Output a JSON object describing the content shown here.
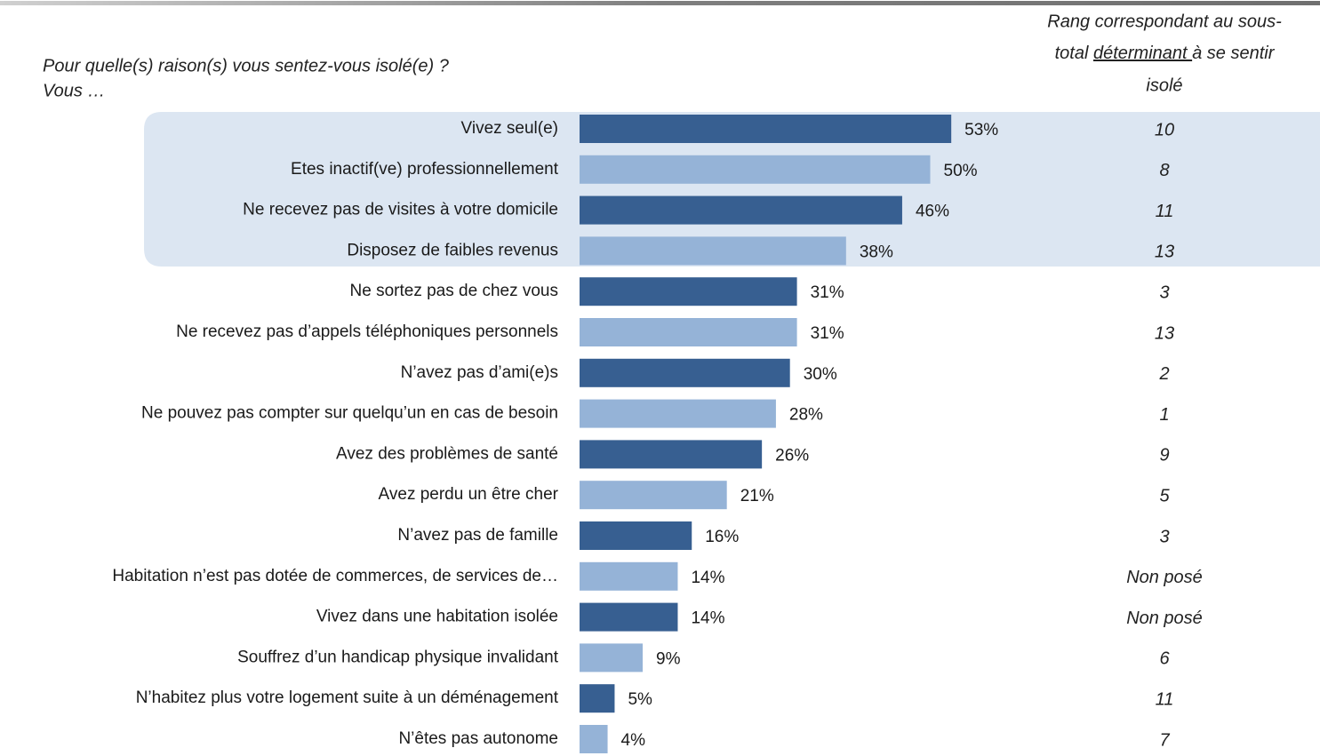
{
  "chart_data": {
    "type": "bar",
    "orientation": "horizontal",
    "title": "Pour quelle(s) raison(s) vous sentez-vous isolé(e) ?",
    "subtitle": "Vous …",
    "categories": [
      "Vivez seul(e)",
      "Etes inactif(ve) professionnellement",
      "Ne recevez pas de visites à votre domicile",
      "Disposez de faibles revenus",
      "Ne sortez pas de chez vous",
      "Ne recevez pas d’appels téléphoniques personnels",
      "N’avez pas d’ami(e)s",
      "Ne pouvez pas compter sur quelqu’un en cas de besoin",
      "Avez des problèmes de santé",
      "Avez perdu un être cher",
      "N’avez pas de famille",
      "Habitation n’est pas dotée de commerces, de services de…",
      "Vivez dans une habitation isolée",
      "Souffrez d’un handicap physique invalidant",
      "N’habitez plus votre logement suite à un déménagement",
      "N’êtes pas autonome"
    ],
    "values": [
      53,
      50,
      46,
      38,
      31,
      31,
      30,
      28,
      26,
      21,
      16,
      14,
      14,
      9,
      5,
      4
    ],
    "value_labels": [
      "53%",
      "50%",
      "46%",
      "38%",
      "31%",
      "31%",
      "30%",
      "28%",
      "26%",
      "21%",
      "16%",
      "14%",
      "14%",
      "9%",
      "5%",
      "4%"
    ],
    "colors": [
      "#375f91",
      "#95b3d7",
      "#375f91",
      "#95b3d7",
      "#375f91",
      "#95b3d7",
      "#375f91",
      "#95b3d7",
      "#375f91",
      "#95b3d7",
      "#375f91",
      "#95b3d7",
      "#375f91",
      "#95b3d7",
      "#375f91",
      "#95b3d7"
    ],
    "rank_header": {
      "line1": "Rang correspondant au sous-",
      "line2_before": "total ",
      "line2_underlined": "déterminant ",
      "line2_after": "à se sentir",
      "line3": "isolé"
    },
    "ranks": [
      "10",
      "8",
      "11",
      "13",
      "3",
      "13",
      "2",
      "1",
      "9",
      "5",
      "3",
      "Non posé",
      "Non posé",
      "6",
      "11",
      "7"
    ]
  }
}
